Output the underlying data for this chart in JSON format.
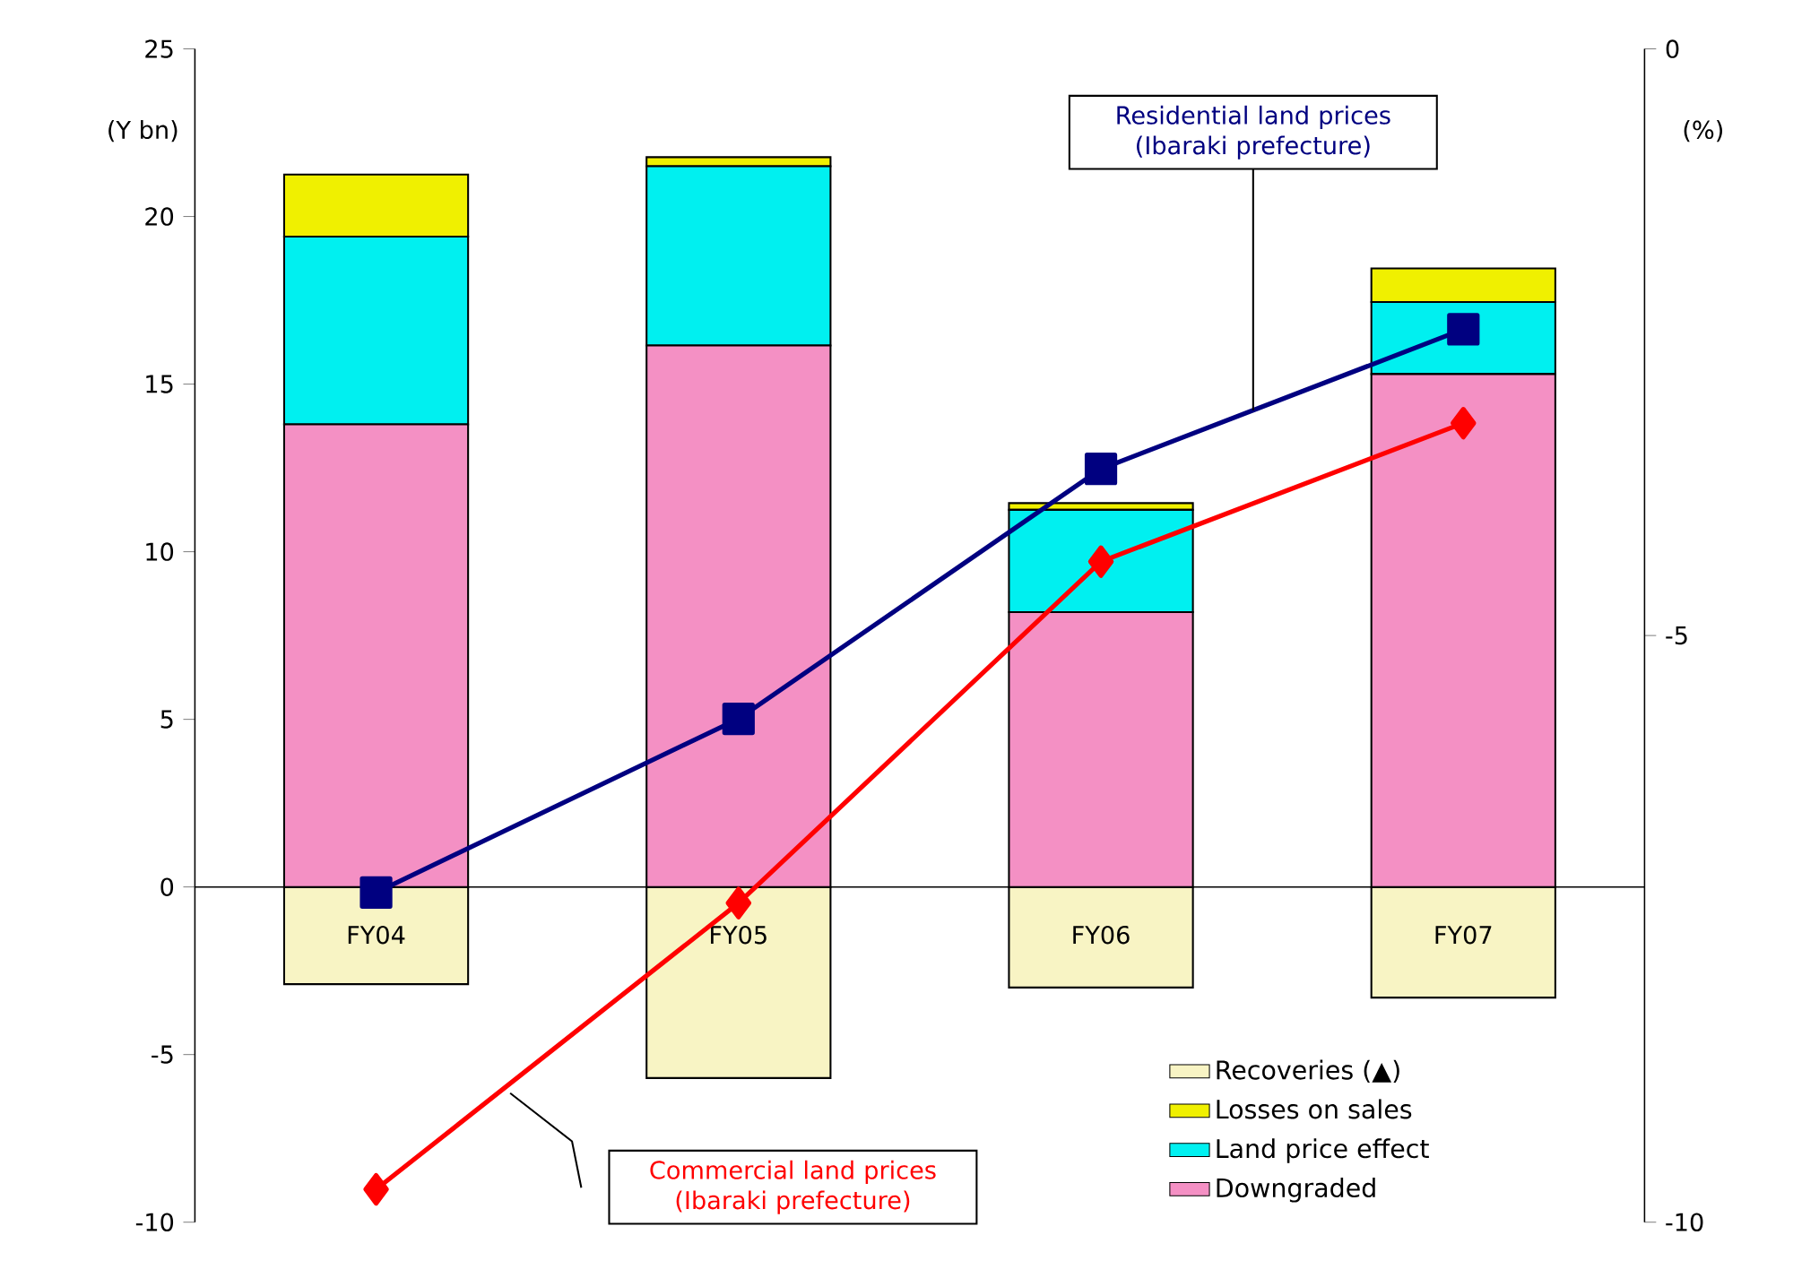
{
  "chart_data": {
    "type": "bar",
    "stacked": true,
    "categories": [
      "FY04",
      "FY05",
      "FY06",
      "FY07"
    ],
    "ylabel": "(Y bn)",
    "y2label": "(%)",
    "ylim": [
      -10,
      25
    ],
    "yticks": [
      -10,
      -5,
      0,
      5,
      10,
      15,
      20,
      25
    ],
    "y2lim": [
      -10,
      0
    ],
    "y2ticks": [
      -10,
      -5,
      0
    ],
    "legend": "bottom right",
    "series": [
      {
        "name": "Downgraded",
        "color": "#f490c4",
        "values": [
          13.8,
          16.15,
          8.2,
          15.3
        ]
      },
      {
        "name": "Land price effect",
        "color": "#00f0f0",
        "values": [
          5.6,
          5.35,
          3.05,
          2.15
        ]
      },
      {
        "name": "Losses on sales",
        "color": "#f0f000",
        "values": [
          1.85,
          0.27,
          0.2,
          1.0
        ]
      },
      {
        "name": "Recoveries (▲)",
        "color": "#f8f4c4",
        "values": [
          -2.9,
          -5.7,
          -3.0,
          -3.3
        ]
      },
      {
        "name": "Residential land prices (Ibaraki prefecture)",
        "type": "line",
        "axis": "y2",
        "marker": "square",
        "color": "#000080",
        "values": [
          -7.19,
          -5.71,
          -3.58,
          -2.39
        ]
      },
      {
        "name": "Commercial land prices (Ibaraki prefecture)",
        "type": "line",
        "axis": "y2",
        "marker": "diamond",
        "color": "#ff0000",
        "values": [
          -9.72,
          -7.28,
          -4.37,
          -3.19
        ]
      }
    ]
  }
}
